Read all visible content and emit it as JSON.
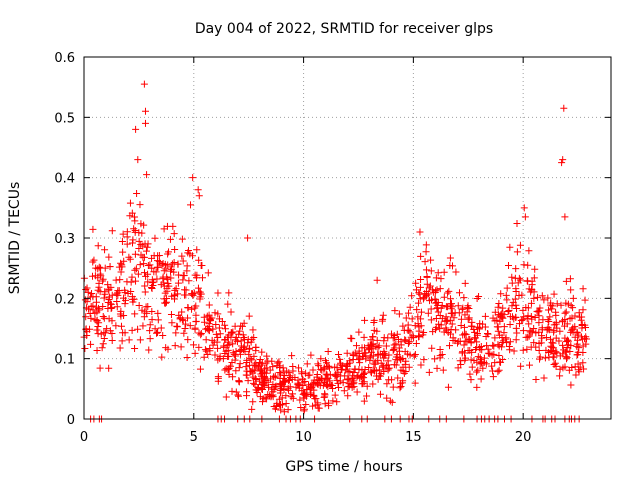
{
  "chart_data": {
    "type": "scatter",
    "title": "Day 004 of 2022, SRMTID for receiver glps",
    "xlabel": "GPS time / hours",
    "ylabel": "SRMTID / TECUs",
    "xlim": [
      0,
      24
    ],
    "ylim": [
      0,
      0.6
    ],
    "xticks": [
      0,
      5,
      10,
      15,
      20
    ],
    "xtick_labels": [
      "0",
      "5",
      "10",
      "15",
      "20"
    ],
    "yticks": [
      0,
      0.1,
      0.2,
      0.3,
      0.4,
      0.5,
      0.6
    ],
    "ytick_labels": [
      "0",
      "0.1",
      "0.2",
      "0.3",
      "0.4",
      "0.5",
      "0.6"
    ],
    "grid": true,
    "marker": "plus",
    "color": "#ff0000",
    "series": [
      {
        "name": "SRMTID",
        "trend": [
          [
            0.0,
            0.17
          ],
          [
            0.5,
            0.19
          ],
          [
            1.0,
            0.21
          ],
          [
            1.5,
            0.22
          ],
          [
            2.0,
            0.23
          ],
          [
            2.5,
            0.25
          ],
          [
            3.0,
            0.22
          ],
          [
            3.5,
            0.2
          ],
          [
            4.0,
            0.21
          ],
          [
            4.5,
            0.21
          ],
          [
            5.0,
            0.22
          ],
          [
            5.5,
            0.17
          ],
          [
            6.0,
            0.14
          ],
          [
            6.5,
            0.12
          ],
          [
            7.0,
            0.11
          ],
          [
            7.5,
            0.1
          ],
          [
            8.0,
            0.07
          ],
          [
            8.5,
            0.065
          ],
          [
            9.0,
            0.06
          ],
          [
            9.5,
            0.06
          ],
          [
            10.0,
            0.06
          ],
          [
            10.5,
            0.055
          ],
          [
            11.0,
            0.06
          ],
          [
            11.5,
            0.07
          ],
          [
            12.0,
            0.08
          ],
          [
            12.5,
            0.09
          ],
          [
            13.0,
            0.1
          ],
          [
            13.5,
            0.11
          ],
          [
            14.0,
            0.11
          ],
          [
            14.5,
            0.1
          ],
          [
            15.0,
            0.14
          ],
          [
            15.5,
            0.2
          ],
          [
            16.0,
            0.18
          ],
          [
            16.5,
            0.17
          ],
          [
            17.0,
            0.16
          ],
          [
            17.5,
            0.14
          ],
          [
            18.0,
            0.13
          ],
          [
            18.5,
            0.12
          ],
          [
            19.0,
            0.14
          ],
          [
            19.5,
            0.19
          ],
          [
            20.0,
            0.2
          ],
          [
            20.5,
            0.16
          ],
          [
            21.0,
            0.14
          ],
          [
            21.5,
            0.13
          ],
          [
            22.0,
            0.15
          ],
          [
            22.5,
            0.13
          ],
          [
            22.9,
            0.15
          ]
        ],
        "outliers": [
          [
            2.35,
            0.48
          ],
          [
            2.45,
            0.43
          ],
          [
            2.75,
            0.555
          ],
          [
            2.8,
            0.51
          ],
          [
            2.8,
            0.49
          ],
          [
            2.85,
            0.405
          ],
          [
            4.85,
            0.355
          ],
          [
            4.95,
            0.4
          ],
          [
            5.2,
            0.38
          ],
          [
            5.25,
            0.37
          ],
          [
            20.05,
            0.35
          ],
          [
            20.1,
            0.335
          ],
          [
            21.75,
            0.425
          ],
          [
            21.8,
            0.43
          ],
          [
            21.85,
            0.515
          ],
          [
            21.9,
            0.335
          ],
          [
            7.45,
            0.3
          ],
          [
            15.3,
            0.31
          ],
          [
            13.35,
            0.23
          ]
        ],
        "zero_points": [
          0.3,
          0.45,
          0.7,
          0.8,
          6.1,
          6.25,
          6.4,
          7.0,
          7.3,
          7.55,
          8.1,
          8.9,
          9.2,
          9.4,
          9.65,
          9.85,
          10.5,
          12.1,
          12.65,
          12.9,
          13.7,
          14.0,
          14.4,
          14.8,
          14.95,
          15.7,
          16.2,
          16.5,
          17.3,
          17.9,
          18.1,
          18.25,
          18.45,
          18.7,
          18.85,
          19.15,
          19.45,
          20.4,
          20.9,
          21.0,
          21.3,
          21.45,
          21.9,
          22.1,
          22.2,
          22.35,
          22.55
        ]
      }
    ]
  }
}
